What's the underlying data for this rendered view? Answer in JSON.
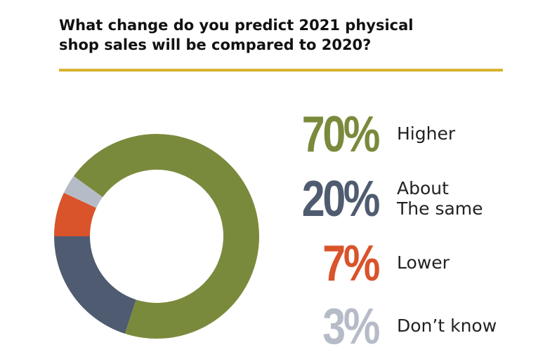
{
  "chart_data": {
    "type": "pie",
    "variant": "donut",
    "title_lines": [
      "What change do you predict 2021 physical",
      "shop sales will be compared to 2020?"
    ],
    "categories": [
      "Higher",
      "About The same",
      "Lower",
      "Don’t know"
    ],
    "values": [
      70,
      20,
      7,
      3
    ],
    "value_labels": [
      "70%",
      "20%",
      "7%",
      "3%"
    ],
    "legend_labels": [
      [
        "Higher"
      ],
      [
        "About",
        "The same"
      ],
      [
        "Lower"
      ],
      [
        "Don’t know"
      ]
    ],
    "colors": [
      "#7a8a3c",
      "#4f5b70",
      "#d9532b",
      "#b6bcc7"
    ],
    "accent_rule_color": "#d8b32e",
    "legend_position": "right"
  }
}
